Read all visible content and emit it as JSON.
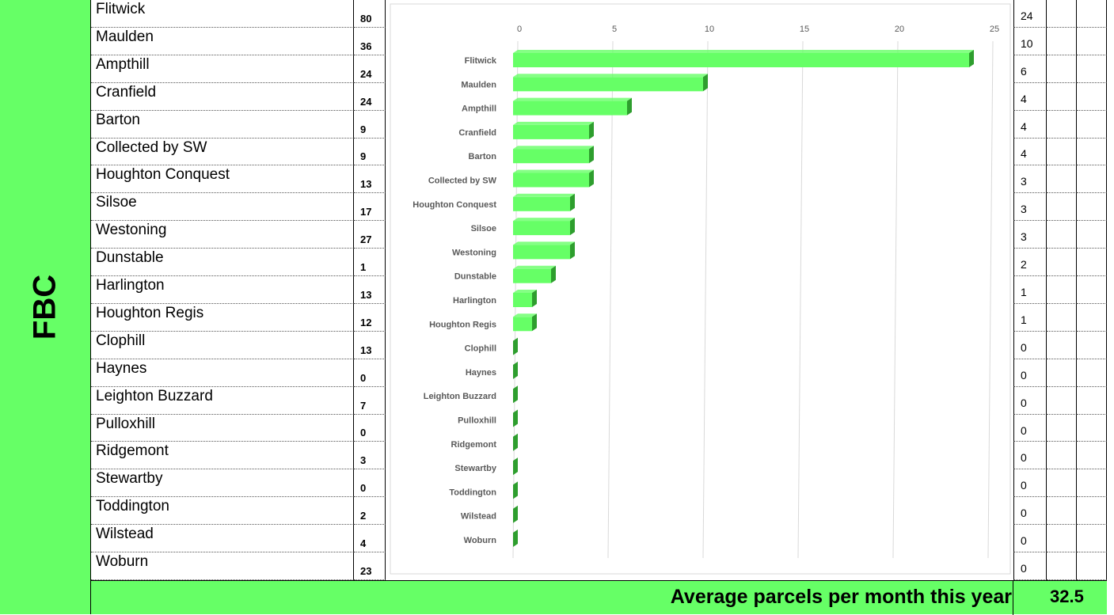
{
  "sheet": {
    "group_label": "FBC",
    "rows": [
      {
        "name": "Flitwick",
        "count": 80
      },
      {
        "name": "Maulden",
        "count": 36
      },
      {
        "name": "Ampthill",
        "count": 24
      },
      {
        "name": "Cranfield",
        "count": 24
      },
      {
        "name": "Barton",
        "count": 9
      },
      {
        "name": "Collected by SW",
        "count": 9
      },
      {
        "name": "Houghton Conquest",
        "count": 13
      },
      {
        "name": "Silsoe",
        "count": 17
      },
      {
        "name": "Westoning",
        "count": 27
      },
      {
        "name": "Dunstable",
        "count": 1
      },
      {
        "name": "Harlington",
        "count": 13
      },
      {
        "name": "Houghton Regis",
        "count": 12
      },
      {
        "name": "Clophill",
        "count": 13
      },
      {
        "name": "Haynes",
        "count": 0
      },
      {
        "name": "Leighton Buzzard",
        "count": 7
      },
      {
        "name": "Pulloxhill",
        "count": 0
      },
      {
        "name": "Ridgemont",
        "count": 3
      },
      {
        "name": "Stewartby",
        "count": 0
      },
      {
        "name": "Toddington",
        "count": 2
      },
      {
        "name": "Wilstead",
        "count": 4
      },
      {
        "name": "Woburn",
        "count": 23
      }
    ],
    "footer": {
      "label": "Average parcels per month this year",
      "value": 32.5
    }
  },
  "chart_data": {
    "type": "bar",
    "orientation": "horizontal",
    "categories": [
      "Flitwick",
      "Maulden",
      "Ampthill",
      "Cranfield",
      "Barton",
      "Collected by SW",
      "Houghton Conquest",
      "Silsoe",
      "Westoning",
      "Dunstable",
      "Harlington",
      "Houghton Regis",
      "Clophill",
      "Haynes",
      "Leighton Buzzard",
      "Pulloxhill",
      "Ridgemont",
      "Stewartby",
      "Toddington",
      "Wilstead",
      "Woburn"
    ],
    "values": [
      24,
      10,
      6,
      4,
      4,
      4,
      3,
      3,
      3,
      2,
      1,
      1,
      0,
      0,
      0,
      0,
      0,
      0,
      0,
      0,
      0
    ],
    "color": "#66ff66",
    "xlim": [
      0,
      25
    ],
    "xticks": [
      0,
      5,
      10,
      15,
      20,
      25
    ],
    "grid": true
  }
}
